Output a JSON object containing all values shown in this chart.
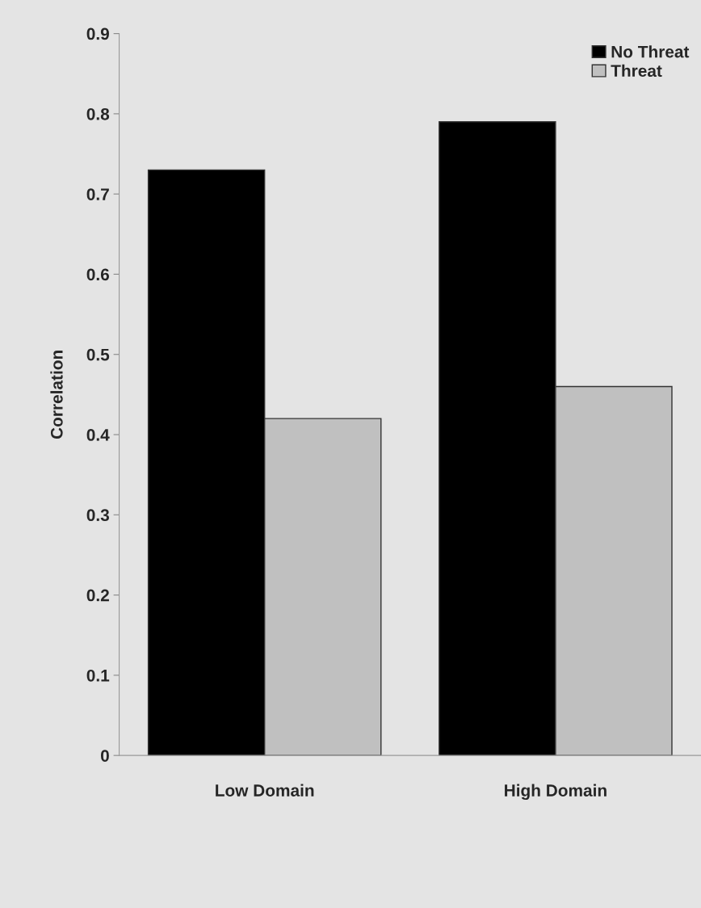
{
  "chart_data": {
    "type": "bar",
    "ylabel": "Correlation",
    "categories": [
      "Low Domain",
      "High Domain"
    ],
    "series": [
      {
        "name": "No Threat",
        "color": "#000000",
        "values": [
          0.73,
          0.79
        ]
      },
      {
        "name": "Threat",
        "color": "#c0c0c0",
        "values": [
          0.42,
          0.46
        ]
      }
    ],
    "ylim": [
      0,
      0.9
    ],
    "yticks": [
      0,
      0.1,
      0.2,
      0.3,
      0.4,
      0.5,
      0.6,
      0.7,
      0.8,
      0.9
    ],
    "grid": false,
    "legend": "top right"
  }
}
